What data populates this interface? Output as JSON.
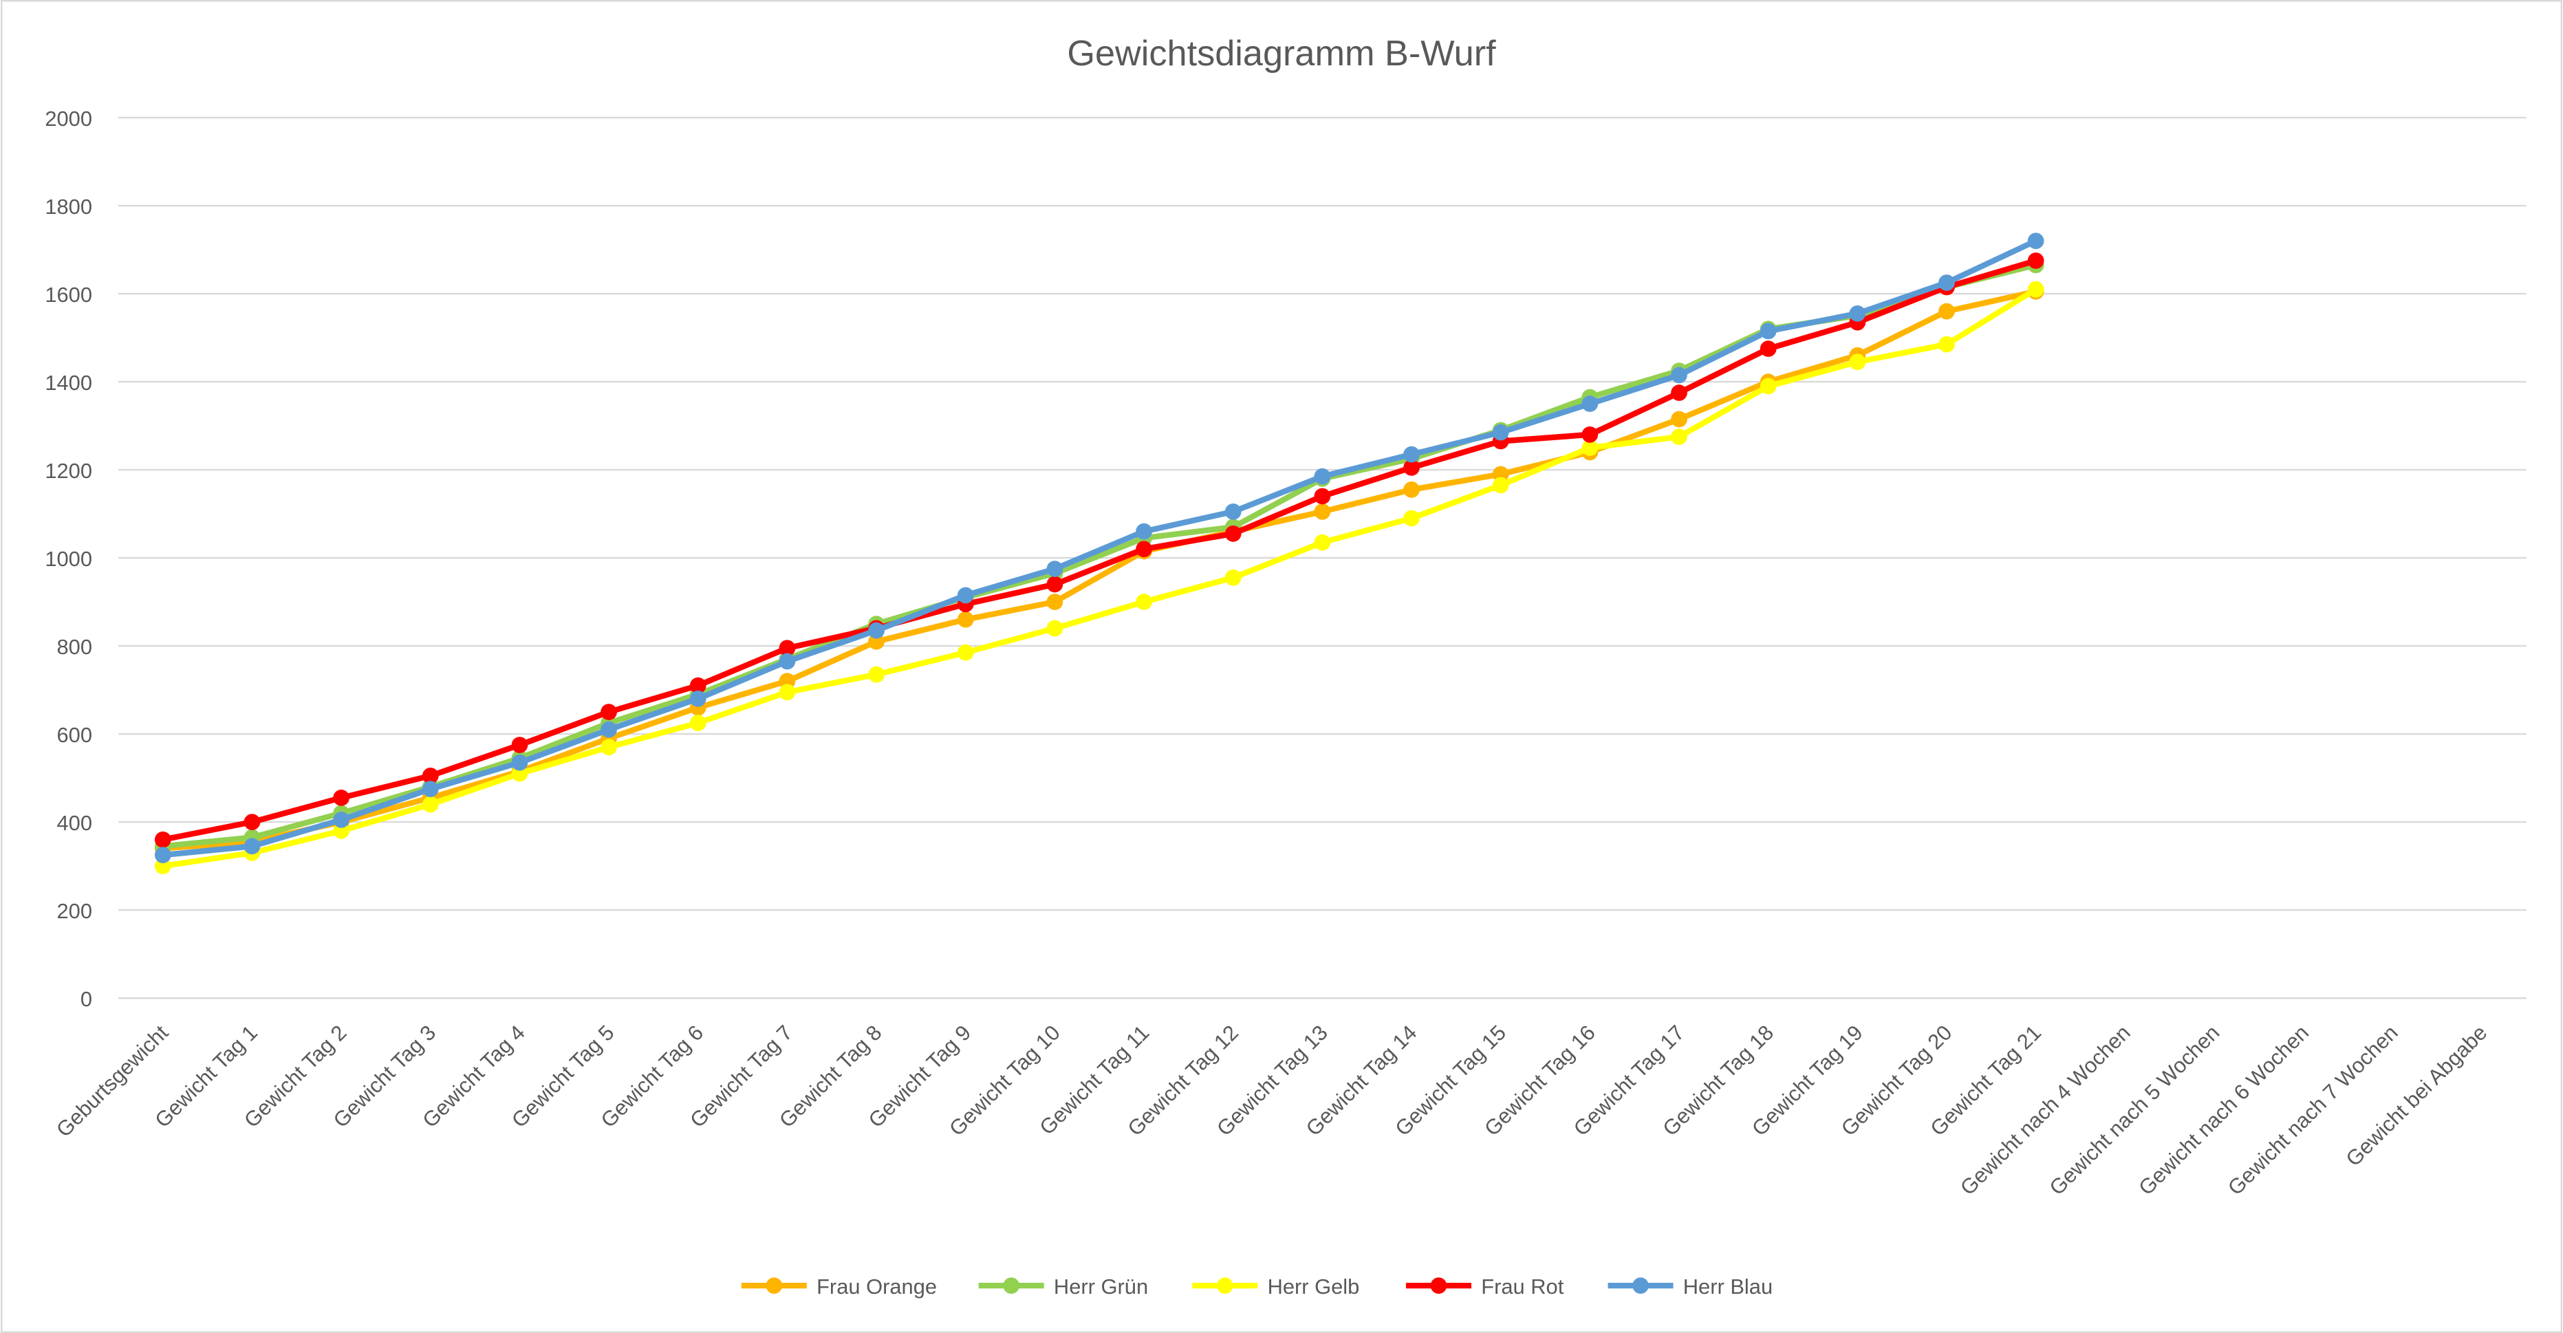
{
  "chart_data": {
    "type": "line",
    "title": "Gewichtsdiagramm B-Wurf",
    "categories": [
      "Geburtsgewicht",
      "Gewicht Tag 1",
      "Gewicht Tag 2",
      "Gewicht Tag 3",
      "Gewicht Tag 4",
      "Gewicht Tag 5",
      "Gewicht Tag 6",
      "Gewicht Tag 7",
      "Gewicht Tag 8",
      "Gewicht Tag 9",
      "Gewicht Tag 10",
      "Gewicht Tag 11",
      "Gewicht Tag 12",
      "Gewicht Tag 13",
      "Gewicht Tag 14",
      "Gewicht Tag 15",
      "Gewicht Tag 16",
      "Gewicht Tag 17",
      "Gewicht Tag 18",
      "Gewicht Tag 19",
      "Gewicht Tag 20",
      "Gewicht Tag 21",
      "Gewicht nach 4 Wochen",
      "Gewicht nach 5 Wochen",
      "Gewicht nach 6 Wochen",
      "Gewicht nach 7 Wochen",
      "Gewicht bei Abgabe"
    ],
    "series": [
      {
        "name": "Frau Orange",
        "color": "#FFB400",
        "values": [
          340,
          355,
          400,
          455,
          515,
          590,
          660,
          720,
          810,
          860,
          900,
          1015,
          1060,
          1105,
          1155,
          1190,
          1240,
          1315,
          1400,
          1460,
          1560,
          1605,
          null,
          null,
          null,
          null,
          null
        ]
      },
      {
        "name": "Herr Grün",
        "color": "#92D050",
        "values": [
          345,
          365,
          420,
          480,
          545,
          625,
          690,
          770,
          850,
          910,
          965,
          1045,
          1070,
          1180,
          1225,
          1290,
          1365,
          1425,
          1520,
          1550,
          1615,
          1665,
          null,
          null,
          null,
          null,
          null
        ]
      },
      {
        "name": "Herr Gelb",
        "color": "#FFFF00",
        "values": [
          300,
          330,
          380,
          440,
          510,
          570,
          625,
          695,
          735,
          785,
          840,
          900,
          955,
          1035,
          1090,
          1165,
          1250,
          1275,
          1390,
          1445,
          1485,
          1610,
          null,
          null,
          null,
          null,
          null
        ]
      },
      {
        "name": "Frau Rot",
        "color": "#FF0000",
        "values": [
          360,
          400,
          455,
          505,
          575,
          650,
          710,
          795,
          840,
          895,
          940,
          1020,
          1055,
          1140,
          1205,
          1265,
          1280,
          1375,
          1475,
          1535,
          1615,
          1675,
          null,
          null,
          null,
          null,
          null
        ]
      },
      {
        "name": "Herr Blau",
        "color": "#5B9BD5",
        "values": [
          325,
          345,
          405,
          475,
          535,
          610,
          680,
          765,
          835,
          915,
          975,
          1060,
          1105,
          1185,
          1235,
          1285,
          1350,
          1415,
          1515,
          1555,
          1625,
          1720,
          null,
          null,
          null,
          null,
          null
        ]
      }
    ],
    "ylim": [
      0,
      2000
    ],
    "yticks": [
      0,
      200,
      400,
      600,
      800,
      1000,
      1200,
      1400,
      1600,
      1800,
      2000
    ],
    "grid": true,
    "legend": "bottom"
  }
}
